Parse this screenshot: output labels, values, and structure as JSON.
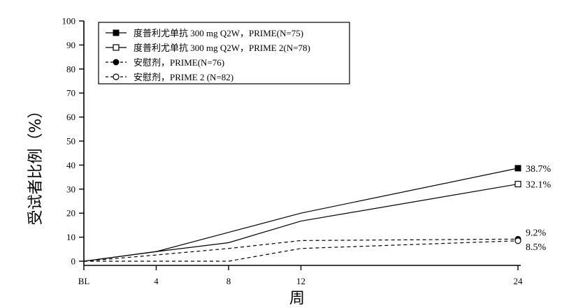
{
  "chart_data": {
    "type": "line",
    "xlabel": "周",
    "ylabel": "受试者比例（%）",
    "x": [
      "BL",
      "4",
      "8",
      "12",
      "24"
    ],
    "x_values": [
      0,
      4,
      8,
      12,
      24
    ],
    "ylim": [
      0,
      100
    ],
    "yticks": [
      0,
      10,
      20,
      30,
      40,
      50,
      60,
      70,
      80,
      90,
      100
    ],
    "grid": false,
    "legend_position": "top-left",
    "series": [
      {
        "name": "度普利尤单抗 300 mg Q2W，PRIME(N=75)",
        "values": [
          0,
          4,
          12,
          20,
          38.7
        ],
        "line_style": "solid",
        "marker": "filled-square",
        "end_label": "38.7%"
      },
      {
        "name": "度普利尤单抗 300 mg Q2W，PRIME 2(N=78)",
        "values": [
          0,
          4,
          7.7,
          16.7,
          32.1
        ],
        "line_style": "solid",
        "marker": "open-square",
        "end_label": "32.1%"
      },
      {
        "name": "安慰剂，PRIME(N=76)",
        "values": [
          0,
          2.6,
          5.3,
          8.6,
          9.2
        ],
        "line_style": "dashed",
        "marker": "filled-circle",
        "end_label": "9.2%"
      },
      {
        "name": "安慰剂，PRIME 2 (N=82)",
        "values": [
          0,
          0,
          0,
          5.3,
          8.5
        ],
        "line_style": "dashed",
        "marker": "open-circle",
        "end_label": "8.5%"
      }
    ]
  }
}
